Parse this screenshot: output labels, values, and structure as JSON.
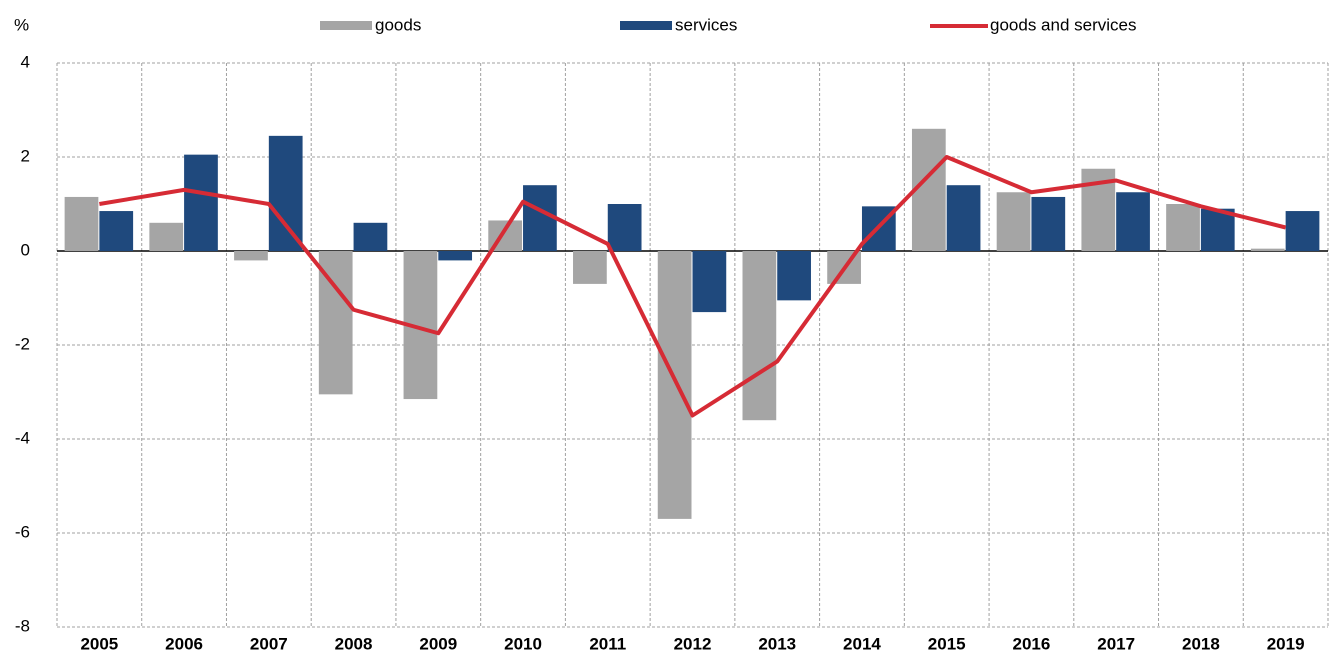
{
  "chart_data": {
    "type": "bar_line",
    "y_label": "%",
    "categories": [
      "2005",
      "2006",
      "2007",
      "2008",
      "2009",
      "2010",
      "2011",
      "2012",
      "2013",
      "2014",
      "2015",
      "2016",
      "2017",
      "2018",
      "2019"
    ],
    "series": [
      {
        "name": "goods",
        "type": "bar",
        "color": "#a5a5a5",
        "values": [
          1.15,
          0.6,
          -0.2,
          -3.05,
          -3.15,
          0.65,
          -0.7,
          -5.7,
          -3.6,
          -0.7,
          2.6,
          1.25,
          1.75,
          1.0,
          0.05
        ]
      },
      {
        "name": "services",
        "type": "bar",
        "color": "#1f497d",
        "values": [
          0.85,
          2.05,
          2.45,
          0.6,
          -0.2,
          1.4,
          1.0,
          -1.3,
          -1.05,
          0.95,
          1.4,
          1.15,
          1.25,
          0.9,
          0.85
        ]
      },
      {
        "name": "goods and services",
        "type": "line",
        "color": "#d62b35",
        "values": [
          1.0,
          1.3,
          1.0,
          -1.25,
          -1.75,
          1.05,
          0.15,
          -3.5,
          -2.35,
          0.15,
          2.0,
          1.25,
          1.5,
          0.95,
          0.5
        ]
      }
    ],
    "ylim": [
      -8,
      4
    ],
    "yticks": [
      4,
      2,
      0,
      -2,
      -4,
      -6,
      -8
    ],
    "grid": true
  }
}
